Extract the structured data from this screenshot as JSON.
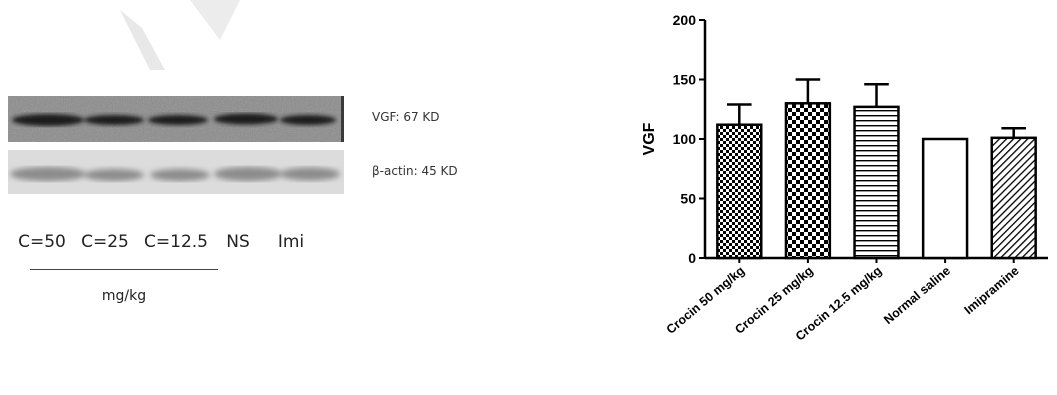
{
  "blot": {
    "bands": [
      {
        "label": "VGF: 67 KD"
      },
      {
        "label": "β-actin: 45 KD"
      }
    ],
    "lanes": [
      "C=50",
      "C=25",
      "C=12.5",
      "NS",
      "Imi"
    ],
    "dose_unit": "mg/kg"
  },
  "chart_data": {
    "type": "bar",
    "categories": [
      "Crocin 50 mg/kg",
      "Crocin 25 mg/kg",
      "Crocin 12.5 mg/kg",
      "Normal saline",
      "Imipramine"
    ],
    "values": [
      112,
      130,
      127,
      100,
      101
    ],
    "errors": [
      17,
      20,
      19,
      0,
      8
    ],
    "patterns": [
      "checker-fine",
      "checker-coarse",
      "horizontal-stripes",
      "none",
      "diagonal-stripes"
    ],
    "title": "",
    "xlabel": "",
    "ylabel": "VGF",
    "ylim": [
      0,
      200
    ],
    "yticks": [
      "0",
      "50",
      "100",
      "150",
      "200"
    ],
    "grid": false
  }
}
